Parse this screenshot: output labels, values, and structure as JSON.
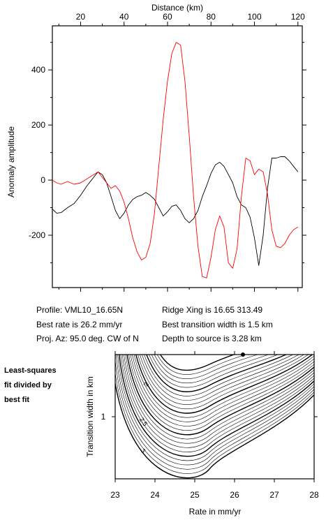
{
  "chart_data": [
    {
      "type": "line",
      "xlabel": "Distance (km)",
      "ylabel": "Anomaly amplitude",
      "xlim": [
        7,
        122
      ],
      "ylim": [
        -390,
        560
      ],
      "x_ticks": [
        20,
        40,
        60,
        80,
        100,
        120
      ],
      "y_ticks": [
        -200,
        0,
        200,
        400
      ],
      "x_axis_position": "top",
      "grid": false,
      "series": [
        {
          "color": "#000000",
          "x": [
            7,
            9,
            11,
            14,
            17,
            20,
            23,
            26,
            28,
            30,
            32,
            34,
            36,
            38,
            40,
            42,
            44,
            46,
            48,
            50,
            52,
            54,
            56,
            58,
            60,
            62,
            64,
            66,
            68,
            70,
            72,
            74,
            76,
            78,
            80,
            82,
            84,
            86,
            88,
            90,
            92,
            94,
            96,
            98,
            100,
            102,
            104,
            106,
            108,
            110,
            112,
            114,
            116,
            118,
            120
          ],
          "y": [
            -105,
            -120,
            -118,
            -100,
            -85,
            -55,
            -20,
            10,
            30,
            20,
            -10,
            -60,
            -110,
            -140,
            -120,
            -90,
            -70,
            -60,
            -55,
            -45,
            -55,
            -70,
            -100,
            -130,
            -115,
            -95,
            -90,
            -110,
            -140,
            -155,
            -140,
            -110,
            -60,
            -20,
            25,
            55,
            65,
            50,
            20,
            -10,
            -60,
            -90,
            -100,
            -135,
            -210,
            -310,
            -200,
            -30,
            80,
            80,
            85,
            85,
            70,
            50,
            30
          ]
        },
        {
          "color": "#ff0000",
          "x": [
            7,
            9,
            11,
            14,
            17,
            20,
            23,
            26,
            28,
            30,
            32,
            34,
            36,
            38,
            40,
            42,
            44,
            46,
            48,
            50,
            52,
            54,
            56,
            58,
            60,
            62,
            64,
            66,
            68,
            70,
            72,
            74,
            76,
            78,
            80,
            82,
            84,
            86,
            88,
            90,
            92,
            94,
            96,
            98,
            100,
            102,
            104,
            106,
            108,
            110,
            112,
            114,
            116,
            118,
            120
          ],
          "y": [
            0,
            -10,
            -15,
            -5,
            -15,
            -10,
            5,
            20,
            30,
            10,
            -10,
            -30,
            -20,
            -40,
            -80,
            -140,
            -210,
            -260,
            -290,
            -280,
            -230,
            -120,
            50,
            220,
            360,
            460,
            500,
            490,
            360,
            160,
            -60,
            -240,
            -350,
            -355,
            -280,
            -180,
            -130,
            -170,
            -300,
            -320,
            -250,
            -60,
            80,
            70,
            20,
            40,
            30,
            -50,
            -180,
            -240,
            -245,
            -230,
            -200,
            -180,
            -170
          ]
        }
      ]
    },
    {
      "type": "heatmap",
      "subtype": "contour",
      "xlabel": "Rate in mm/yr",
      "ylabel": "Transition width in km",
      "xlim": [
        23,
        28
      ],
      "x_ticks": [
        "23",
        "24",
        "25",
        "26",
        "27",
        "28"
      ],
      "y_ticks": [
        "1"
      ],
      "contour_labels": [
        "2",
        "2.5",
        "3"
      ],
      "best_fit_marker": {
        "rate": 26.2,
        "width": 1.5
      },
      "title": "Least-squares fit divided by best fit"
    }
  ],
  "info": {
    "profile": "Profile: VML10_16.65N",
    "best_rate": "Best rate is 26.2 mm/yr",
    "proj_az": "Proj. Az: 95.0 deg. CW of N",
    "ridge_xing": "Ridge Xing is 16.65 313.49",
    "best_transition": "Best transition width is 1.5 km",
    "depth": "Depth to source is    3.28 km"
  },
  "side_label": {
    "line1": "Least-squares",
    "line2": "fit divided by",
    "line3": "best fit"
  }
}
